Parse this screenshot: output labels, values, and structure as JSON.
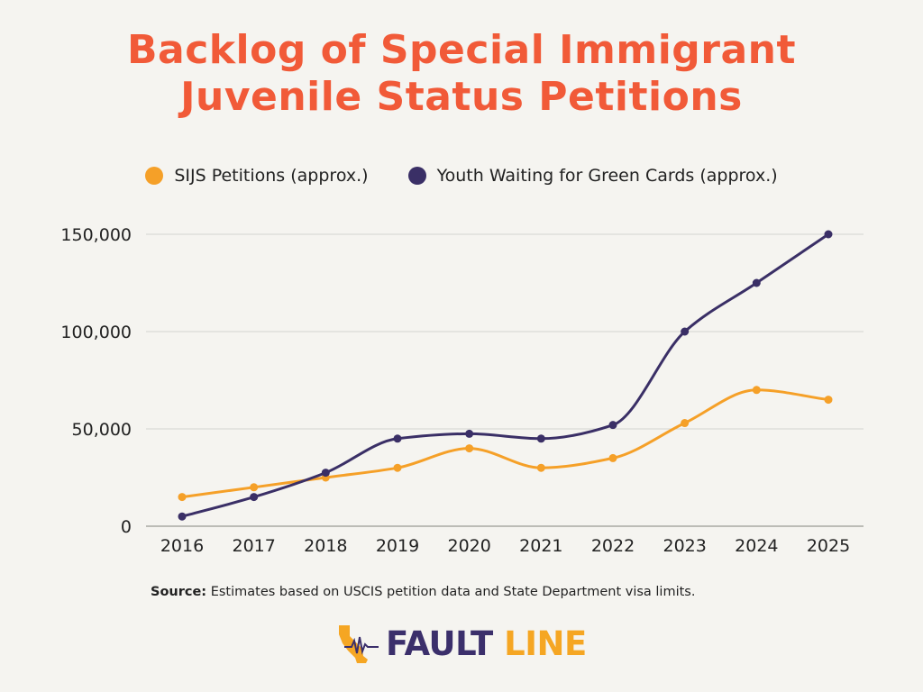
{
  "title_lines": [
    "Backlog of Special Immigrant",
    "Juvenile Status Petitions"
  ],
  "source": {
    "label": "Source:",
    "text": "Estimates based on USCIS petition data and State Department visa limits."
  },
  "logo": {
    "word1": "FAULT",
    "word2": "LINE",
    "icon": "california-seismograph-icon"
  },
  "colors": {
    "title": "#f15a38",
    "sijs": "#f5a028",
    "youth": "#3a2f66",
    "grid": "#d4d4cf",
    "background": "#f5f4f0"
  },
  "chart_data": {
    "type": "line",
    "title": "Backlog of Special Immigrant Juvenile Status Petitions",
    "xlabel": "",
    "ylabel": "",
    "categories": [
      "2016",
      "2017",
      "2018",
      "2019",
      "2020",
      "2021",
      "2022",
      "2023",
      "2024",
      "2025"
    ],
    "ylim": [
      0,
      150000
    ],
    "yticks": [
      0,
      50000,
      100000,
      150000
    ],
    "ytick_labels": [
      "0",
      "50,000",
      "100,000",
      "150,000"
    ],
    "grid": true,
    "legend_position": "top-center",
    "series": [
      {
        "name": "SIJS Petitions (approx.)",
        "color": "#f5a028",
        "values": [
          15000,
          20000,
          25000,
          30000,
          40000,
          30000,
          35000,
          53000,
          70000,
          65000
        ]
      },
      {
        "name": "Youth Waiting for Green Cards (approx.)",
        "color": "#3a2f66",
        "values": [
          5000,
          15000,
          27500,
          45000,
          47500,
          45000,
          52000,
          100000,
          125000,
          150000
        ]
      }
    ]
  }
}
